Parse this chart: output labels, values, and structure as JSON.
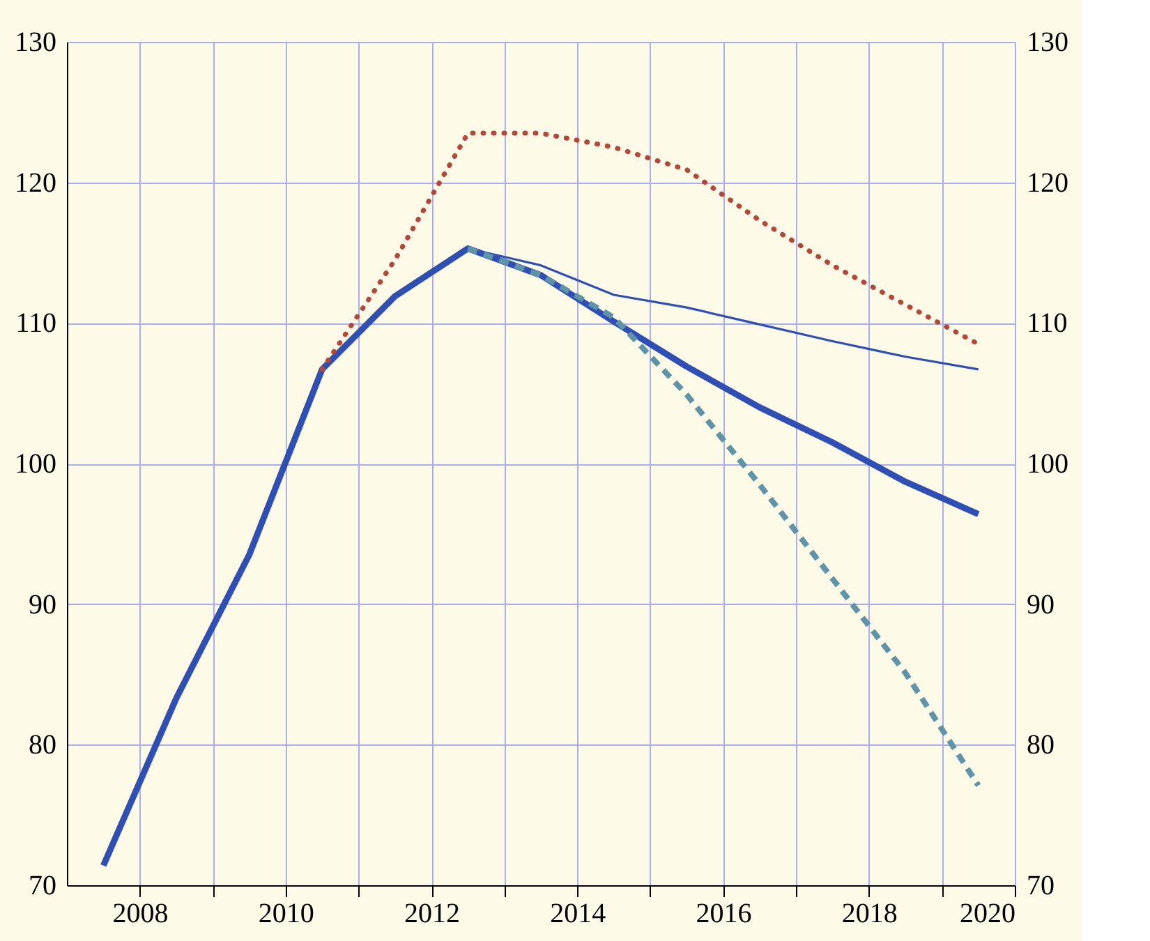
{
  "chart_data": {
    "type": "line",
    "x": [
      2007.5,
      2008.5,
      2009.5,
      2010.5,
      2011.5,
      2012.5,
      2013.5,
      2014.5,
      2015.5,
      2016.5,
      2017.5,
      2018.5,
      2019.5
    ],
    "series": [
      {
        "color": "#2f4fb5",
        "line_style": "solid",
        "values": [
          71.4,
          83.3,
          93.5,
          106.7,
          111.9,
          115.3,
          113.4,
          110.1,
          106.9,
          104.0,
          101.5,
          98.7,
          96.4
        ]
      },
      {
        "color": "#2f4fb5",
        "line_style": "solid",
        "x": [
          2012.5,
          2013.5,
          2014.5,
          2015.5,
          2016.5,
          2017.5,
          2018.5,
          2019.5
        ],
        "values": [
          115.3,
          114.1,
          112.0,
          111.1,
          109.9,
          108.7,
          107.6,
          106.7
        ]
      },
      {
        "color": "#5f94a8",
        "line_style": "dashed",
        "x": [
          2012.5,
          2013.5,
          2014.5,
          2015.5,
          2016.5,
          2017.5,
          2018.5,
          2019.5
        ],
        "values": [
          115.3,
          113.4,
          110.4,
          104.9,
          98.5,
          91.8,
          85.1,
          77.1
        ]
      },
      {
        "color": "#b5473a",
        "line_style": "dotted",
        "x": [
          2010.5,
          2011.5,
          2012.5,
          2013.5,
          2014.5,
          2015.5,
          2016.5,
          2017.5,
          2018.5,
          2019.5
        ],
        "values": [
          106.7,
          114.5,
          123.5,
          123.5,
          122.5,
          120.9,
          117.3,
          114.1,
          111.3,
          108.5
        ]
      }
    ],
    "xlim": [
      2007,
      2020
    ],
    "xticks": [
      2008,
      {
        "value": 2009,
        "label": null
      },
      2010,
      {
        "value": 2011,
        "label": null
      },
      2012,
      {
        "value": 2013,
        "label": null
      },
      2014,
      {
        "value": 2015,
        "label": null
      },
      2016,
      {
        "value": 2017,
        "label": null
      },
      2018,
      {
        "value": 2019,
        "label": null
      },
      2020
    ],
    "ylim": [
      70,
      130
    ],
    "yticks": [
      70,
      80,
      90,
      100,
      110,
      120,
      130
    ],
    "y2lim": [
      70,
      130
    ],
    "y2ticks": [
      70,
      80,
      90,
      100,
      110,
      120,
      130
    ],
    "grid": true,
    "marker": "none"
  }
}
